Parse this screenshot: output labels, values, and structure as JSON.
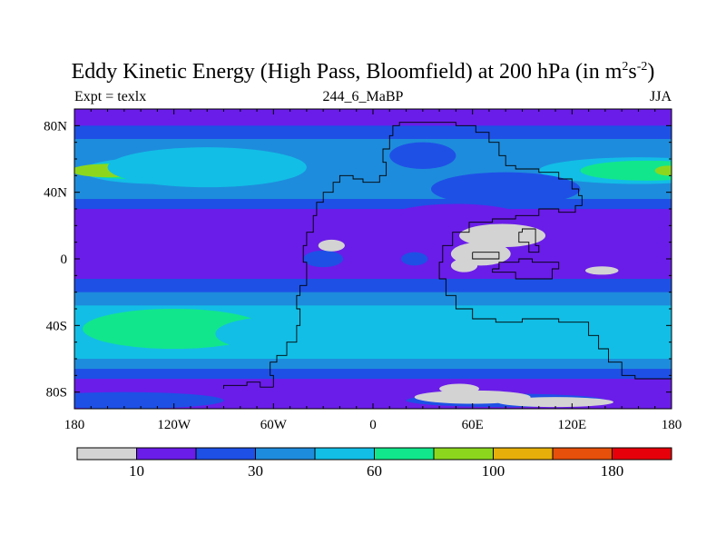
{
  "title": {
    "main": "Eddy Kinetic Energy (High Pass, Bloomfield) at 200 hPa (in m",
    "exp1": "2",
    "s": "s",
    "exp2": "-2",
    "close": ")"
  },
  "header": {
    "left": "Expt = texlx",
    "center": "244_6_MaBP",
    "right": "JJA"
  },
  "chart_data": {
    "type": "heatmap",
    "x_ticks": [
      {
        "value": -180,
        "label": "180"
      },
      {
        "value": -120,
        "label": "120W"
      },
      {
        "value": -60,
        "label": "60W"
      },
      {
        "value": 0,
        "label": "0"
      },
      {
        "value": 60,
        "label": "60E"
      },
      {
        "value": 120,
        "label": "120E"
      },
      {
        "value": 180,
        "label": "180"
      }
    ],
    "y_ticks": [
      {
        "value": 80,
        "label": "80N"
      },
      {
        "value": 40,
        "label": "40N"
      },
      {
        "value": 0,
        "label": "0"
      },
      {
        "value": -40,
        "label": "40S"
      },
      {
        "value": -80,
        "label": "80S"
      }
    ],
    "xlim": [
      -180,
      180
    ],
    "ylim": [
      -90,
      90
    ],
    "colorbar": {
      "colors": [
        "#d3d3d3",
        "#6a1de8",
        "#1e50e6",
        "#1e8cdc",
        "#12bee6",
        "#12e68c",
        "#8cd71e",
        "#e6af0a",
        "#e6500a",
        "#e6000a"
      ],
      "labels": [
        {
          "after_box": 1,
          "text": "10"
        },
        {
          "after_box": 3,
          "text": "30"
        },
        {
          "after_box": 5,
          "text": "60"
        },
        {
          "after_box": 7,
          "text": "100"
        },
        {
          "after_box": 9,
          "text": "180"
        }
      ]
    },
    "bands": [
      {
        "lat_top": 90,
        "lat_bottom": 80,
        "level": 1
      },
      {
        "lat_top": 80,
        "lat_bottom": 72,
        "level": 2
      },
      {
        "lat_top": 72,
        "lat_bottom": 62,
        "level": 3
      },
      {
        "lat_top": 62,
        "lat_bottom": 36,
        "level": 3
      },
      {
        "lat_top": 36,
        "lat_bottom": 30,
        "level": 2
      },
      {
        "lat_top": 30,
        "lat_bottom": -12,
        "level": 1
      },
      {
        "lat_top": -12,
        "lat_bottom": -20,
        "level": 2
      },
      {
        "lat_top": -20,
        "lat_bottom": -28,
        "level": 3
      },
      {
        "lat_top": -28,
        "lat_bottom": -60,
        "level": 4
      },
      {
        "lat_top": -60,
        "lat_bottom": -66,
        "level": 3
      },
      {
        "lat_top": -66,
        "lat_bottom": -72,
        "level": 2
      },
      {
        "lat_top": -72,
        "lat_bottom": -90,
        "level": 1
      }
    ],
    "blobs": [
      {
        "lon": -130,
        "lat": 53,
        "rlon": 45,
        "rlat": 8,
        "level": 4
      },
      {
        "lon": -145,
        "lat": 53,
        "rlon": 32,
        "rlat": 5,
        "level": 5
      },
      {
        "lon": -160,
        "lat": 53,
        "rlon": 22,
        "rlat": 4,
        "level": 6
      },
      {
        "lon": -100,
        "lat": 55,
        "rlon": 60,
        "rlat": 12,
        "level": 4
      },
      {
        "lon": 160,
        "lat": 53,
        "rlon": 60,
        "rlat": 8,
        "level": 4
      },
      {
        "lon": 165,
        "lat": 53,
        "rlon": 40,
        "rlat": 6,
        "level": 5
      },
      {
        "lon": 178,
        "lat": 53,
        "rlon": 8,
        "rlat": 3,
        "level": 6
      },
      {
        "lon": 30,
        "lat": 62,
        "rlon": 20,
        "rlat": 8,
        "level": 2
      },
      {
        "lon": 80,
        "lat": 42,
        "rlon": 45,
        "rlat": 10,
        "level": 2
      },
      {
        "lon": -120,
        "lat": -42,
        "rlon": 55,
        "rlat": 12,
        "level": 5
      },
      {
        "lon": -130,
        "lat": -42,
        "rlon": 40,
        "rlat": 9,
        "level": 5
      },
      {
        "lon": -60,
        "lat": -45,
        "rlon": 35,
        "rlat": 10,
        "level": 4
      },
      {
        "lon": 30,
        "lat": -42,
        "rlon": 35,
        "rlat": 9,
        "level": 4
      },
      {
        "lon": 115,
        "lat": -40,
        "rlon": 40,
        "rlat": 9,
        "level": 4
      },
      {
        "lon": 150,
        "lat": -40,
        "rlon": 30,
        "rlat": 8,
        "level": 4
      },
      {
        "lon": -30,
        "lat": 0,
        "rlon": 12,
        "rlat": 5,
        "level": 2
      },
      {
        "lon": 25,
        "lat": 0,
        "rlon": 8,
        "rlat": 4,
        "level": 2
      },
      {
        "lon": 50,
        "lat": 25,
        "rlon": 40,
        "rlat": 8,
        "level": 1
      },
      {
        "lon": -150,
        "lat": -85,
        "rlon": 60,
        "rlat": 5,
        "level": 2
      },
      {
        "lon": 80,
        "lat": -85,
        "rlon": 60,
        "rlat": 4,
        "level": 2
      },
      {
        "lon": -25,
        "lat": 8,
        "rlon": 8,
        "rlat": 3.5,
        "level": 0
      },
      {
        "lon": 78,
        "lat": 14,
        "rlon": 26,
        "rlat": 7,
        "level": 0
      },
      {
        "lon": 65,
        "lat": 3,
        "rlon": 18,
        "rlat": 7,
        "level": 0
      },
      {
        "lon": 55,
        "lat": -4,
        "rlon": 8,
        "rlat": 4,
        "level": 0
      },
      {
        "lon": 138,
        "lat": -7,
        "rlon": 10,
        "rlat": 2.5,
        "level": 0
      },
      {
        "lon": 60,
        "lat": -83,
        "rlon": 35,
        "rlat": 4,
        "level": 0
      },
      {
        "lon": 52,
        "lat": -78,
        "rlon": 12,
        "rlat": 3,
        "level": 0
      },
      {
        "lon": 110,
        "lat": -86,
        "rlon": 35,
        "rlat": 3,
        "level": 0
      }
    ],
    "boundary": [
      [
        -60,
        -77
      ],
      [
        -62,
        -70
      ],
      [
        -58,
        -62
      ],
      [
        -52,
        -58
      ],
      [
        -46,
        -50
      ],
      [
        -44,
        -40
      ],
      [
        -46,
        -30
      ],
      [
        -44,
        -22
      ],
      [
        -40,
        -16
      ],
      [
        -40,
        -8
      ],
      [
        -42,
        -2
      ],
      [
        -40,
        8
      ],
      [
        -36,
        16
      ],
      [
        -34,
        26
      ],
      [
        -30,
        34
      ],
      [
        -24,
        40
      ],
      [
        -20,
        46
      ],
      [
        -12,
        50
      ],
      [
        -6,
        48
      ],
      [
        4,
        46
      ],
      [
        8,
        50
      ],
      [
        6,
        58
      ],
      [
        10,
        66
      ],
      [
        12,
        74
      ],
      [
        16,
        80
      ],
      [
        30,
        82
      ],
      [
        50,
        82
      ],
      [
        62,
        80
      ],
      [
        70,
        76
      ],
      [
        76,
        70
      ],
      [
        80,
        62
      ],
      [
        86,
        56
      ],
      [
        100,
        54
      ],
      [
        112,
        52
      ],
      [
        120,
        48
      ],
      [
        124,
        42
      ],
      [
        126,
        38
      ],
      [
        122,
        32
      ],
      [
        112,
        28
      ],
      [
        100,
        30
      ],
      [
        86,
        26
      ],
      [
        72,
        24
      ],
      [
        58,
        22
      ],
      [
        48,
        16
      ],
      [
        42,
        8
      ],
      [
        40,
        -2
      ],
      [
        44,
        -12
      ],
      [
        50,
        -22
      ],
      [
        60,
        -30
      ],
      [
        74,
        -36
      ],
      [
        90,
        -38
      ],
      [
        112,
        -36
      ],
      [
        130,
        -38
      ],
      [
        136,
        -46
      ],
      [
        142,
        -54
      ],
      [
        150,
        -62
      ],
      [
        158,
        -70
      ],
      [
        180,
        -72
      ]
    ],
    "subboundary": [
      [
        -90,
        -78
      ],
      [
        -76,
        -76
      ],
      [
        -68,
        -74
      ],
      [
        -60,
        -77
      ]
    ],
    "inner_polys": [
      [
        [
          60,
          4
        ],
        [
          76,
          4
        ],
        [
          76,
          0
        ],
        [
          60,
          0
        ],
        [
          60,
          4
        ]
      ],
      [
        [
          90,
          16
        ],
        [
          98,
          18
        ],
        [
          100,
          8
        ],
        [
          94,
          4
        ],
        [
          88,
          10
        ],
        [
          90,
          16
        ]
      ],
      [
        [
          72,
          -6
        ],
        [
          86,
          -8
        ],
        [
          96,
          -12
        ],
        [
          108,
          -12
        ],
        [
          112,
          -6
        ],
        [
          106,
          -2
        ],
        [
          96,
          -2
        ],
        [
          88,
          0
        ],
        [
          76,
          -2
        ],
        [
          72,
          -6
        ]
      ]
    ]
  }
}
